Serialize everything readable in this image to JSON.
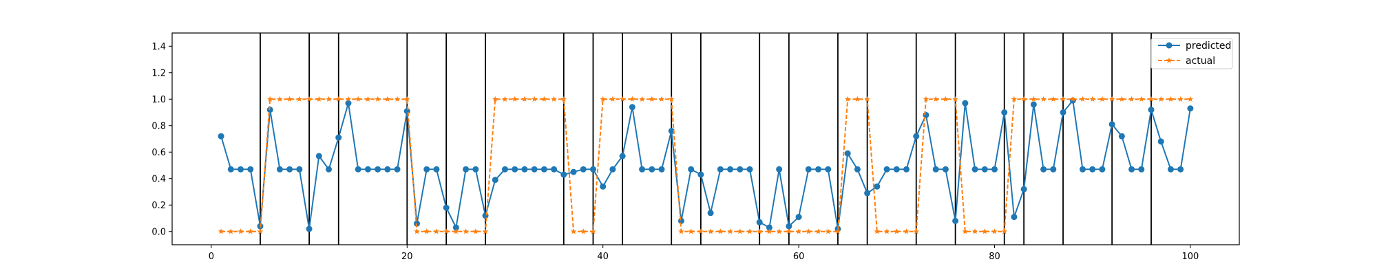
{
  "chart_data": {
    "type": "line",
    "xlim": [
      -4,
      105
    ],
    "ylim": [
      -0.1,
      1.5
    ],
    "xticks": [
      0,
      20,
      40,
      60,
      80,
      100
    ],
    "yticks": [
      0.0,
      0.2,
      0.4,
      0.6,
      0.8,
      1.0,
      1.2,
      1.4
    ],
    "xtick_labels": [
      "0",
      "20",
      "40",
      "60",
      "80",
      "100"
    ],
    "ytick_labels": [
      "0.0",
      "0.2",
      "0.4",
      "0.6",
      "0.8",
      "1.0",
      "1.2",
      "1.4"
    ],
    "vlines": [
      5,
      10,
      13,
      20,
      24,
      28,
      36,
      39,
      42,
      47,
      50,
      56,
      59,
      64,
      67,
      72,
      76,
      81,
      83,
      87,
      92,
      96
    ],
    "legend": {
      "position": "upper right"
    },
    "x": [
      1,
      2,
      3,
      4,
      5,
      6,
      7,
      8,
      9,
      10,
      11,
      12,
      13,
      14,
      15,
      16,
      17,
      18,
      19,
      20,
      21,
      22,
      23,
      24,
      25,
      26,
      27,
      28,
      29,
      30,
      31,
      32,
      33,
      34,
      35,
      36,
      37,
      38,
      39,
      40,
      41,
      42,
      43,
      44,
      45,
      46,
      47,
      48,
      49,
      50,
      51,
      52,
      53,
      54,
      55,
      56,
      57,
      58,
      59,
      60,
      61,
      62,
      63,
      64,
      65,
      66,
      67,
      68,
      69,
      70,
      71,
      72,
      73,
      74,
      75,
      76,
      77,
      78,
      79,
      80,
      81,
      82,
      83,
      84,
      85,
      86,
      87,
      88,
      89,
      90,
      91,
      92,
      93,
      94,
      95,
      96,
      97,
      98,
      99,
      100
    ],
    "series": [
      {
        "name": "predicted",
        "color": "#1f77b4",
        "style": "solid",
        "marker": "circle",
        "values": [
          0.72,
          0.47,
          0.47,
          0.47,
          0.04,
          0.92,
          0.47,
          0.47,
          0.47,
          0.02,
          0.57,
          0.47,
          0.71,
          0.97,
          0.47,
          0.47,
          0.47,
          0.47,
          0.47,
          0.91,
          0.06,
          0.47,
          0.47,
          0.18,
          0.03,
          0.47,
          0.47,
          0.12,
          0.39,
          0.47,
          0.47,
          0.47,
          0.47,
          0.47,
          0.47,
          0.43,
          0.45,
          0.47,
          0.47,
          0.34,
          0.47,
          0.57,
          0.94,
          0.47,
          0.47,
          0.47,
          0.76,
          0.08,
          0.47,
          0.43,
          0.14,
          0.47,
          0.47,
          0.47,
          0.47,
          0.07,
          0.03,
          0.47,
          0.04,
          0.11,
          0.47,
          0.47,
          0.47,
          0.02,
          0.59,
          0.47,
          0.29,
          0.34,
          0.47,
          0.47,
          0.47,
          0.72,
          0.88,
          0.47,
          0.47,
          0.08,
          0.97,
          0.47,
          0.47,
          0.47,
          0.9,
          0.11,
          0.32,
          0.96,
          0.47,
          0.47,
          0.9,
          0.99,
          0.47,
          0.47,
          0.47,
          0.81,
          0.72,
          0.47,
          0.47,
          0.92,
          0.68,
          0.47,
          0.47,
          0.93
        ]
      },
      {
        "name": "actual",
        "color": "#ff7f0e",
        "style": "dashed",
        "marker": "star",
        "values": [
          0,
          0,
          0,
          0,
          0,
          1,
          1,
          1,
          1,
          1,
          1,
          1,
          1,
          1,
          1,
          1,
          1,
          1,
          1,
          1,
          0,
          0,
          0,
          0,
          0,
          0,
          0,
          0,
          1,
          1,
          1,
          1,
          1,
          1,
          1,
          1,
          0,
          0,
          0,
          1,
          1,
          1,
          1,
          1,
          1,
          1,
          1,
          0,
          0,
          0,
          0,
          0,
          0,
          0,
          0,
          0,
          0,
          0,
          0,
          0,
          0,
          0,
          0,
          0,
          1,
          1,
          1,
          0,
          0,
          0,
          0,
          0,
          1,
          1,
          1,
          1,
          0,
          0,
          0,
          0,
          0,
          1,
          1,
          1,
          1,
          1,
          1,
          1,
          1,
          1,
          1,
          1,
          1,
          1,
          1,
          1,
          1,
          1,
          1,
          1
        ]
      }
    ]
  }
}
